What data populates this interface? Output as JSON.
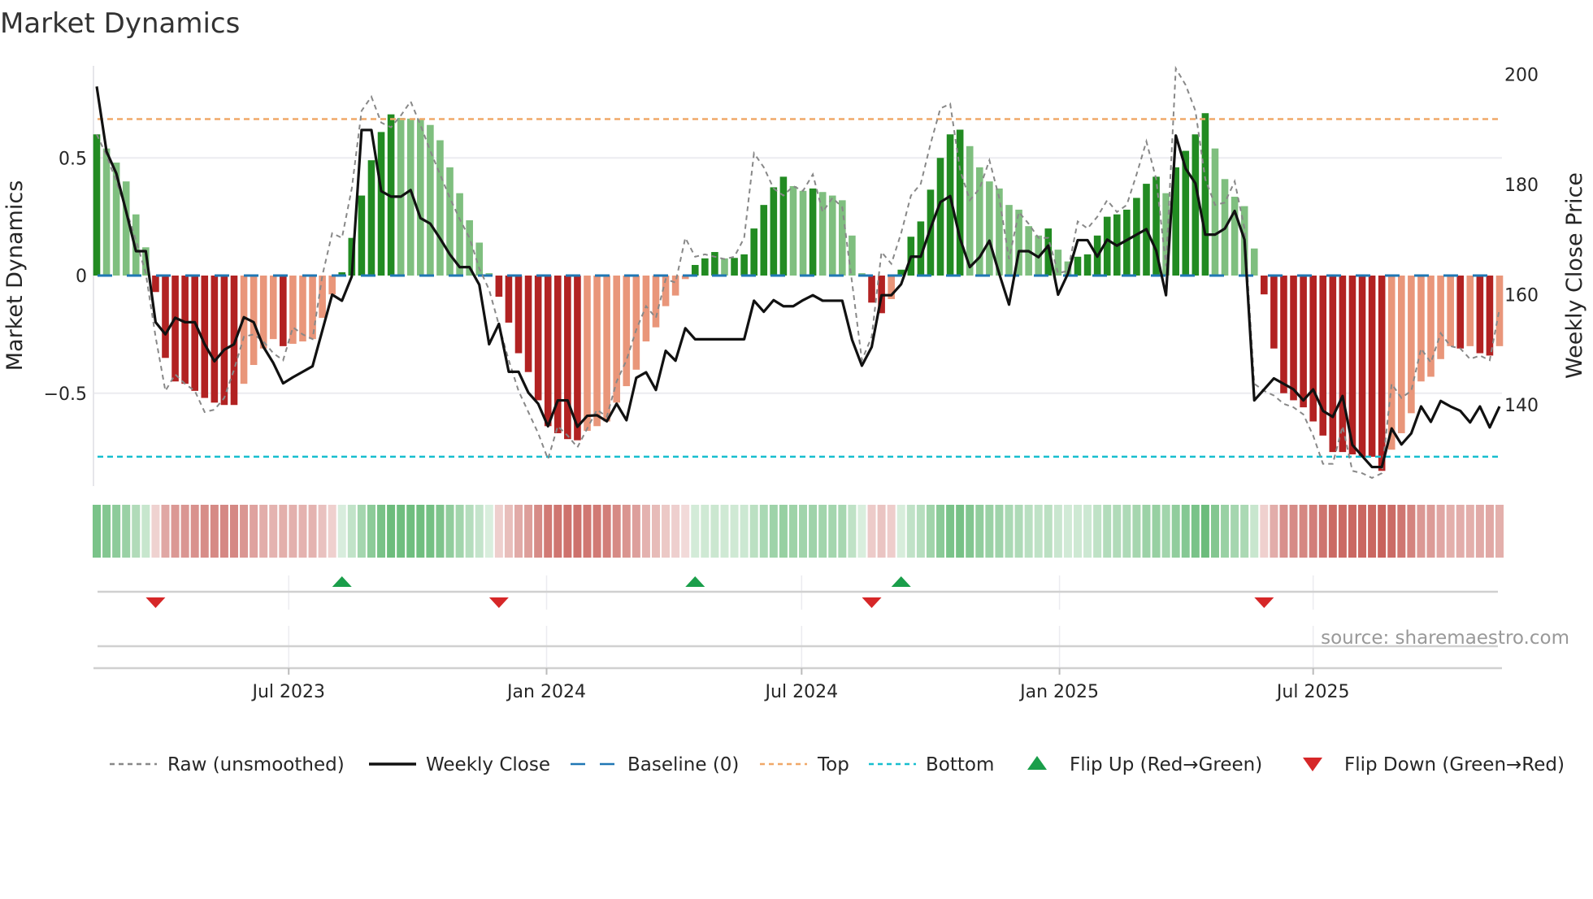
{
  "title": "Market Dynamics",
  "source": "source: sharemaestro.com",
  "chart_data": {
    "type": "bar",
    "title": "Market Dynamics",
    "ylabel": "Market Dynamics",
    "y2label": "Weekly Close Price",
    "ylim": [
      -0.96,
      0.89
    ],
    "y2lim": [
      120.3,
      202.9
    ],
    "start_date": "2023-02-14",
    "frequency": "weekly",
    "yticks": [
      {
        "value": 0.5,
        "label": "0.5"
      },
      {
        "value": 0,
        "label": "0"
      },
      {
        "value": -0.5,
        "label": "−0.5"
      }
    ],
    "y2ticks": [
      {
        "value": 200,
        "label": "200"
      },
      {
        "value": 180,
        "label": "180"
      },
      {
        "value": 160,
        "label": "160"
      },
      {
        "value": 140,
        "label": "140"
      }
    ],
    "xticks": [
      {
        "date": "2023-07-01",
        "label": "Jul 2023"
      },
      {
        "date": "2024-01-01",
        "label": "Jan 2024"
      },
      {
        "date": "2024-07-01",
        "label": "Jul 2024"
      },
      {
        "date": "2025-01-01",
        "label": "Jan 2025"
      },
      {
        "date": "2025-07-01",
        "label": "Jul 2025"
      }
    ],
    "top_level": 0.665,
    "bottom_level": -0.77,
    "baseline": 0,
    "market_dynamics": [
      0.6,
      0.54,
      0.48,
      0.4,
      0.26,
      0.12,
      -0.07,
      -0.35,
      -0.45,
      -0.46,
      -0.49,
      -0.52,
      -0.54,
      -0.55,
      -0.55,
      -0.46,
      -0.38,
      -0.31,
      -0.27,
      -0.3,
      -0.29,
      -0.28,
      -0.27,
      -0.18,
      -0.08,
      0.014,
      0.16,
      0.34,
      0.49,
      0.61,
      0.685,
      0.67,
      0.667,
      0.665,
      0.64,
      0.575,
      0.46,
      0.35,
      0.235,
      0.14,
      0.01,
      -0.09,
      -0.2,
      -0.33,
      -0.41,
      -0.53,
      -0.64,
      -0.67,
      -0.695,
      -0.7,
      -0.66,
      -0.64,
      -0.62,
      -0.54,
      -0.47,
      -0.4,
      -0.28,
      -0.22,
      -0.13,
      -0.085,
      -0.015,
      0.045,
      0.073,
      0.1,
      0.073,
      0.075,
      0.09,
      0.2,
      0.3,
      0.375,
      0.42,
      0.38,
      0.36,
      0.37,
      0.355,
      0.34,
      0.32,
      0.17,
      0.01,
      -0.115,
      -0.16,
      -0.1,
      0.025,
      0.165,
      0.23,
      0.365,
      0.5,
      0.6,
      0.62,
      0.55,
      0.46,
      0.4,
      0.37,
      0.3,
      0.28,
      0.21,
      0.17,
      0.2,
      0.11,
      0.06,
      0.08,
      0.09,
      0.17,
      0.25,
      0.26,
      0.28,
      0.33,
      0.39,
      0.42,
      0.35,
      0.46,
      0.53,
      0.6,
      0.69,
      0.54,
      0.41,
      0.335,
      0.295,
      0.115,
      -0.08,
      -0.31,
      -0.5,
      -0.53,
      -0.56,
      -0.62,
      -0.68,
      -0.75,
      -0.75,
      -0.76,
      -0.77,
      -0.77,
      -0.83,
      -0.74,
      -0.67,
      -0.585,
      -0.45,
      -0.43,
      -0.355,
      -0.3,
      -0.31,
      -0.3,
      -0.33,
      -0.34,
      -0.3
    ],
    "raw_unsmoothed": [
      0.6,
      0.51,
      0.4,
      0.28,
      0.15,
      0.01,
      -0.26,
      -0.49,
      -0.42,
      -0.46,
      -0.49,
      -0.58,
      -0.57,
      -0.52,
      -0.4,
      -0.26,
      -0.25,
      -0.28,
      -0.33,
      -0.36,
      -0.22,
      -0.25,
      -0.27,
      0.0,
      0.18,
      0.16,
      0.37,
      0.7,
      0.76,
      0.65,
      0.63,
      0.68,
      0.74,
      0.64,
      0.53,
      0.43,
      0.33,
      0.24,
      0.16,
      0.03,
      -0.06,
      -0.21,
      -0.36,
      -0.49,
      -0.58,
      -0.67,
      -0.78,
      -0.64,
      -0.68,
      -0.73,
      -0.65,
      -0.57,
      -0.6,
      -0.45,
      -0.36,
      -0.23,
      -0.13,
      -0.18,
      -0.015,
      -0.03,
      0.16,
      0.08,
      0.09,
      0.08,
      0.07,
      0.08,
      0.16,
      0.52,
      0.46,
      0.37,
      0.34,
      0.38,
      0.36,
      0.43,
      0.27,
      0.33,
      0.29,
      -0.03,
      -0.36,
      -0.26,
      0.1,
      0.05,
      0.18,
      0.34,
      0.39,
      0.56,
      0.71,
      0.73,
      0.45,
      0.32,
      0.37,
      0.49,
      0.33,
      0.07,
      0.27,
      0.22,
      0.16,
      0.16,
      0.01,
      0.02,
      0.23,
      0.2,
      0.25,
      0.32,
      0.27,
      0.3,
      0.43,
      0.57,
      0.41,
      0.04,
      0.88,
      0.81,
      0.7,
      0.41,
      0.3,
      0.31,
      0.4,
      0.2,
      -0.46,
      -0.49,
      -0.51,
      -0.545,
      -0.56,
      -0.59,
      -0.68,
      -0.8,
      -0.8,
      -0.64,
      -0.83,
      -0.84,
      -0.86,
      -0.84,
      -0.46,
      -0.52,
      -0.49,
      -0.31,
      -0.37,
      -0.245,
      -0.3,
      -0.31,
      -0.355,
      -0.34,
      -0.36,
      -0.14
    ],
    "weekly_close": [
      197.8,
      186.0,
      182.0,
      175.1,
      167.9,
      167.9,
      155.0,
      152.8,
      155.8,
      155.0,
      155.0,
      151.0,
      147.9,
      150.0,
      151.0,
      155.9,
      155.0,
      150.5,
      147.6,
      143.9,
      145.0,
      146.0,
      147.0,
      153.5,
      160.0,
      158.9,
      163.3,
      189.9,
      189.9,
      178.8,
      177.8,
      177.8,
      179.0,
      173.9,
      172.9,
      170.2,
      167.3,
      165.0,
      165.0,
      161.8,
      151.0,
      154.7,
      146.0,
      146.0,
      142.2,
      140.2,
      136.1,
      140.8,
      140.8,
      136.0,
      138.0,
      138.1,
      137.0,
      140.2,
      137.2,
      144.9,
      145.9,
      142.7,
      149.8,
      148.0,
      153.9,
      151.9,
      151.9,
      151.9,
      151.9,
      151.9,
      151.9,
      158.9,
      156.9,
      159.0,
      157.9,
      157.9,
      159.0,
      159.9,
      158.9,
      158.9,
      158.9,
      151.8,
      147.1,
      150.5,
      159.9,
      159.9,
      161.9,
      166.9,
      166.9,
      172.1,
      176.8,
      177.9,
      170.2,
      165.0,
      166.8,
      169.8,
      163.8,
      158.2,
      167.9,
      167.9,
      166.8,
      168.9,
      160.0,
      163.8,
      169.9,
      169.9,
      166.9,
      170.0,
      168.9,
      169.9,
      170.9,
      171.9,
      168.0,
      159.9,
      188.9,
      182.9,
      180.2,
      170.9,
      170.9,
      172.0,
      175.2,
      170.0,
      140.8,
      142.8,
      144.8,
      143.8,
      142.8,
      140.8,
      142.8,
      138.9,
      137.8,
      141.6,
      132.7,
      130.7,
      128.7,
      128.7,
      135.7,
      132.8,
      134.8,
      139.7,
      136.9,
      140.7,
      139.7,
      138.9,
      136.8,
      139.7,
      135.9,
      139.7
    ],
    "flip_up_weeks": [
      26,
      62,
      83
    ],
    "flip_down_weeks": [
      7,
      42,
      80,
      120
    ],
    "colors": {
      "green_strong": "#228b22",
      "green_weak": "#7fbf7f",
      "red_strong": "#b22222",
      "red_weak": "#e9967a",
      "heat_green": "#5ab46c",
      "heat_red": "#c8625c",
      "raw": "#888888",
      "close": "#111111",
      "baseline": "#1f77b4",
      "top": "#f0a868",
      "bottom": "#17becf",
      "flip_up": "#1a9e4a",
      "flip_down": "#d62728"
    },
    "legend": [
      {
        "key": "raw",
        "label": "Raw (unsmoothed)",
        "style": "dotted"
      },
      {
        "key": "close",
        "label": "Weekly Close",
        "style": "solid"
      },
      {
        "key": "baseline",
        "label": "Baseline (0)",
        "style": "dashed"
      },
      {
        "key": "top",
        "label": "Top",
        "style": "dotted"
      },
      {
        "key": "bottom",
        "label": "Bottom",
        "style": "dotted"
      },
      {
        "key": "flip_up",
        "label": "Flip Up (Red→Green)",
        "style": "triangle-up"
      },
      {
        "key": "flip_down",
        "label": "Flip Down (Green→Red)",
        "style": "triangle-down"
      }
    ],
    "legend_position": "bottom"
  }
}
